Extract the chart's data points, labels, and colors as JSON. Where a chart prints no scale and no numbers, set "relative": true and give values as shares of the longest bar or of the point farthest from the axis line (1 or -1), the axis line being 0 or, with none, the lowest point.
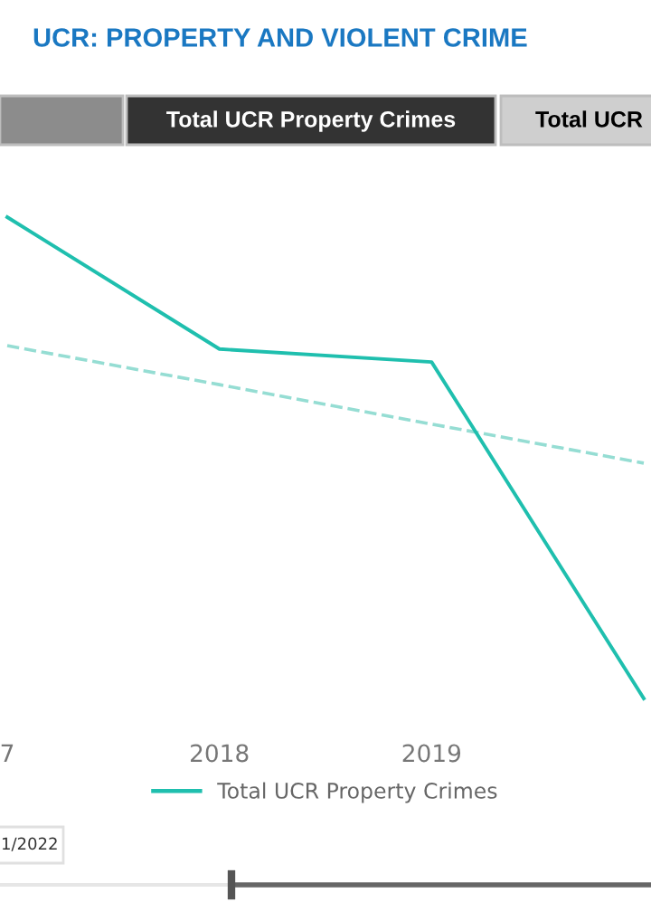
{
  "chart_data": {
    "type": "line",
    "title": "UCR: PROPERTY AND VIOLENT CRIME",
    "relative": true,
    "categories": [
      "7",
      "2018",
      "2019",
      null
    ],
    "series": [
      {
        "name": "Total UCR Property Crimes",
        "color": "#1fbfae",
        "values": [
          1,
          0.726,
          0.699,
          0
        ],
        "line_style": "solid"
      },
      {
        "color": "#95ddd3",
        "values": [
          0.733,
          0.652,
          0.57,
          0.489
        ],
        "line_style": "dashed"
      }
    ],
    "legend": "bottom",
    "annotations": [
      "Total UCR Property Crimes",
      "Total UCR",
      "1/2022"
    ]
  }
}
